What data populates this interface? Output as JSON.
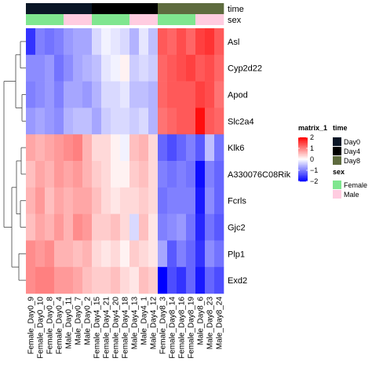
{
  "chart_data": {
    "type": "heatmap",
    "columns": [
      "Female_Day0_9",
      "Female_Day0_10",
      "Female_Day0_8",
      "Female_Day0_4",
      "Male_Day0_11",
      "Male_Day0_7",
      "Male_Day0_2",
      "Female_Day4_15",
      "Female_Day4_21",
      "Female_Day4_20",
      "Female_Day4_18",
      "Male_Day4_13",
      "Male_Day4_1",
      "Male_Day4_12",
      "Female_Day8_3",
      "Female_Day8_14",
      "Female_Day8_16",
      "Female_Day8_19",
      "Male_Day8_6",
      "Male_Day8_23",
      "Male_Day8_24"
    ],
    "rows": [
      "Asl",
      "Cyp2d22",
      "Apod",
      "Slc2a4",
      "Klk6",
      "A330076C08Rik",
      "Fcrls",
      "Gjc2",
      "Plp1",
      "Exd2"
    ],
    "values": [
      [
        -1.6,
        -1.0,
        -1.1,
        -1.0,
        -0.8,
        -0.7,
        -0.7,
        -0.3,
        -0.1,
        -0.2,
        -0.3,
        -0.6,
        -0.2,
        -0.5,
        1.3,
        1.2,
        1.4,
        1.2,
        1.5,
        1.6,
        1.3
      ],
      [
        -0.9,
        -0.9,
        -0.8,
        -1.1,
        -0.9,
        -0.7,
        -0.6,
        -0.5,
        -0.2,
        -0.1,
        0.1,
        -0.4,
        -0.3,
        -0.4,
        1.2,
        1.3,
        1.4,
        1.5,
        1.3,
        1.4,
        1.2
      ],
      [
        -1.0,
        -0.9,
        -0.8,
        -1.0,
        -0.7,
        -0.7,
        -0.8,
        -0.6,
        -0.3,
        -0.3,
        -0.2,
        -0.5,
        -0.5,
        -0.6,
        1.2,
        1.3,
        1.3,
        1.3,
        1.5,
        1.4,
        1.1
      ],
      [
        -0.8,
        -0.7,
        -0.8,
        -0.9,
        -0.6,
        -0.5,
        -0.5,
        -0.7,
        -0.4,
        -0.3,
        -0.3,
        -0.4,
        -0.3,
        -0.6,
        1.1,
        1.2,
        1.3,
        1.3,
        1.9,
        1.3,
        1.2
      ],
      [
        0.7,
        0.6,
        0.7,
        0.8,
        0.9,
        1.0,
        0.6,
        0.3,
        0.3,
        0.1,
        -0.1,
        0.5,
        0.6,
        0.3,
        -1.2,
        -1.4,
        -1.2,
        -1.0,
        -1.3,
        -0.5,
        -1.1
      ],
      [
        0.5,
        0.7,
        0.6,
        0.8,
        0.7,
        0.8,
        0.6,
        0.4,
        0.3,
        0.1,
        0.1,
        0.4,
        0.5,
        0.3,
        -1.0,
        -1.1,
        -1.0,
        -1.1,
        -1.9,
        -1.0,
        -1.2
      ],
      [
        0.6,
        0.8,
        0.5,
        0.7,
        0.6,
        0.7,
        0.7,
        0.5,
        0.3,
        0.2,
        0.3,
        0.3,
        0.4,
        0.3,
        -1.1,
        -1.0,
        -1.0,
        -1.0,
        -1.8,
        -0.9,
        -1.2
      ],
      [
        0.5,
        0.7,
        0.6,
        0.8,
        0.6,
        0.9,
        0.8,
        0.4,
        0.4,
        0.5,
        0.3,
        -0.3,
        0.5,
        0.2,
        -1.0,
        -0.9,
        -0.8,
        -1.1,
        -1.7,
        -1.1,
        -1.3
      ],
      [
        0.9,
        0.8,
        0.9,
        0.6,
        0.6,
        0.5,
        0.6,
        0.3,
        0.2,
        0.3,
        0.1,
        0.4,
        0.3,
        0.2,
        -0.7,
        -1.3,
        -1.0,
        -1.2,
        -1.6,
        -0.9,
        -1.1
      ],
      [
        0.9,
        1.0,
        1.0,
        0.8,
        0.8,
        0.7,
        0.5,
        0.4,
        0.4,
        0.5,
        0.3,
        0.2,
        0.5,
        0.4,
        -2.0,
        -1.4,
        -1.6,
        -1.2,
        -1.8,
        -1.2,
        -1.4
      ]
    ],
    "row_order_note_groups": [
      [
        0,
        1,
        2,
        3
      ],
      [
        4,
        5,
        6,
        7,
        8,
        9
      ]
    ],
    "column_annotations": {
      "time": [
        "Day0",
        "Day0",
        "Day0",
        "Day0",
        "Day0",
        "Day0",
        "Day0",
        "Day4",
        "Day4",
        "Day4",
        "Day4",
        "Day4",
        "Day4",
        "Day4",
        "Day8",
        "Day8",
        "Day8",
        "Day8",
        "Day8",
        "Day8",
        "Day8"
      ],
      "sex": [
        "Female",
        "Female",
        "Female",
        "Female",
        "Male",
        "Male",
        "Male",
        "Female",
        "Female",
        "Female",
        "Female",
        "Male",
        "Male",
        "Male",
        "Female",
        "Female",
        "Female",
        "Female",
        "Male",
        "Male",
        "Male"
      ]
    },
    "annotation_labels": {
      "time": "time",
      "sex": "sex"
    },
    "color_scale": {
      "title": "matrix_1",
      "breaks": [
        2,
        1,
        0,
        -1,
        -2
      ],
      "colors": {
        "low": "#0000ff",
        "mid": "#ffffff",
        "high": "#ff0000"
      }
    },
    "legends": {
      "time": {
        "title": "time",
        "levels": [
          "Day0",
          "Day4",
          "Day8"
        ],
        "colors": [
          "#0a1626",
          "#000000",
          "#5e6b3e"
        ]
      },
      "sex": {
        "title": "sex",
        "levels": [
          "Female",
          "Male"
        ],
        "colors": [
          "#7fe68f",
          "#ffcce0"
        ]
      }
    },
    "grid": false
  }
}
